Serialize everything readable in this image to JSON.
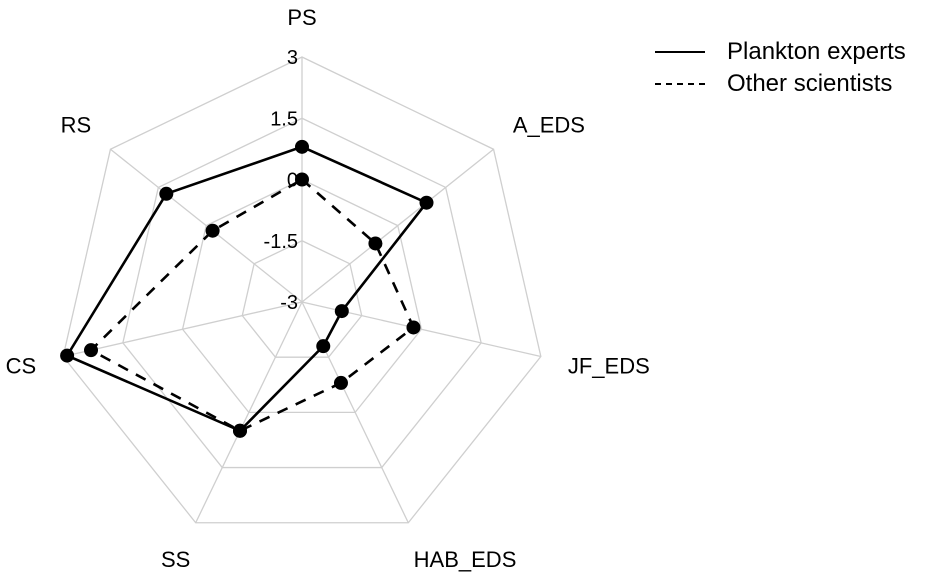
{
  "chart_data": {
    "type": "radar",
    "title": "",
    "axes": [
      "PS",
      "A_EDS",
      "JF_EDS",
      "HAB_EDS",
      "SS",
      "CS",
      "RS"
    ],
    "rlim": [
      -3,
      3
    ],
    "ticks": [
      "3",
      "1.5",
      "0",
      "-1.5",
      "-3"
    ],
    "tick_values": [
      3,
      1.5,
      0,
      -1.5,
      -3
    ],
    "grid": true,
    "legend_position": "top-right",
    "series": [
      {
        "name": "Plankton experts",
        "line_style": "solid",
        "values": [
          0.8,
          0.9,
          -2.0,
          -1.8,
          0.5,
          2.9,
          1.25
        ]
      },
      {
        "name": "Other scientists",
        "line_style": "dashed",
        "values": [
          0.0,
          -0.7,
          -0.2,
          -0.8,
          0.5,
          2.3,
          -0.2
        ]
      }
    ]
  }
}
